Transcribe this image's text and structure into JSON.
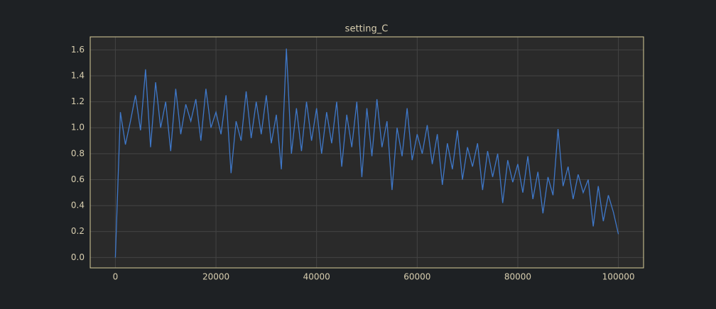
{
  "chart_data": {
    "type": "line",
    "title": "setting_C",
    "x": [
      0,
      1000,
      2000,
      3000,
      4000,
      5000,
      6000,
      7000,
      8000,
      9000,
      10000,
      11000,
      12000,
      13000,
      14000,
      15000,
      16000,
      17000,
      18000,
      19000,
      20000,
      21000,
      22000,
      23000,
      24000,
      25000,
      26000,
      27000,
      28000,
      29000,
      30000,
      31000,
      32000,
      33000,
      34000,
      35000,
      36000,
      37000,
      38000,
      39000,
      40000,
      41000,
      42000,
      43000,
      44000,
      45000,
      46000,
      47000,
      48000,
      49000,
      50000,
      51000,
      52000,
      53000,
      54000,
      55000,
      56000,
      57000,
      58000,
      59000,
      60000,
      61000,
      62000,
      63000,
      64000,
      65000,
      66000,
      67000,
      68000,
      69000,
      70000,
      71000,
      72000,
      73000,
      74000,
      75000,
      76000,
      77000,
      78000,
      79000,
      80000,
      81000,
      82000,
      83000,
      84000,
      85000,
      86000,
      87000,
      88000,
      89000,
      90000,
      91000,
      92000,
      93000,
      94000,
      95000,
      96000,
      97000,
      98000,
      99000,
      100000
    ],
    "series": [
      {
        "color": "#3f78c9",
        "values": [
          0,
          1.12,
          0.87,
          1.05,
          1.25,
          0.98,
          1.45,
          0.85,
          1.35,
          1.0,
          1.2,
          0.82,
          1.3,
          0.95,
          1.18,
          1.05,
          1.22,
          0.9,
          1.3,
          1.0,
          1.12,
          0.95,
          1.25,
          0.65,
          1.05,
          0.9,
          1.28,
          0.92,
          1.2,
          0.95,
          1.25,
          0.88,
          1.1,
          0.68,
          1.61,
          0.8,
          1.15,
          0.82,
          1.2,
          0.9,
          1.15,
          0.8,
          1.12,
          0.88,
          1.2,
          0.7,
          1.1,
          0.85,
          1.2,
          0.62,
          1.15,
          0.78,
          1.22,
          0.85,
          1.05,
          0.52,
          1.0,
          0.78,
          1.15,
          0.75,
          0.95,
          0.8,
          1.02,
          0.72,
          0.95,
          0.56,
          0.88,
          0.68,
          0.98,
          0.6,
          0.85,
          0.7,
          0.88,
          0.52,
          0.82,
          0.62,
          0.8,
          0.42,
          0.75,
          0.58,
          0.72,
          0.5,
          0.78,
          0.45,
          0.66,
          0.34,
          0.62,
          0.48,
          0.99,
          0.55,
          0.7,
          0.45,
          0.64,
          0.5,
          0.6,
          0.24,
          0.55,
          0.28,
          0.48,
          0.35,
          0.18
        ]
      }
    ],
    "xlim": [
      -5000,
      105000
    ],
    "ylim": [
      -0.08,
      1.7
    ],
    "xticks": [
      0,
      20000,
      40000,
      60000,
      80000,
      100000
    ],
    "yticks": [
      {
        "value": 0,
        "label": "0.0"
      },
      0.2,
      0.4,
      0.6,
      0.8,
      {
        "value": 1,
        "label": "1.0"
      },
      1.2,
      1.4,
      1.6
    ],
    "grid": true
  }
}
